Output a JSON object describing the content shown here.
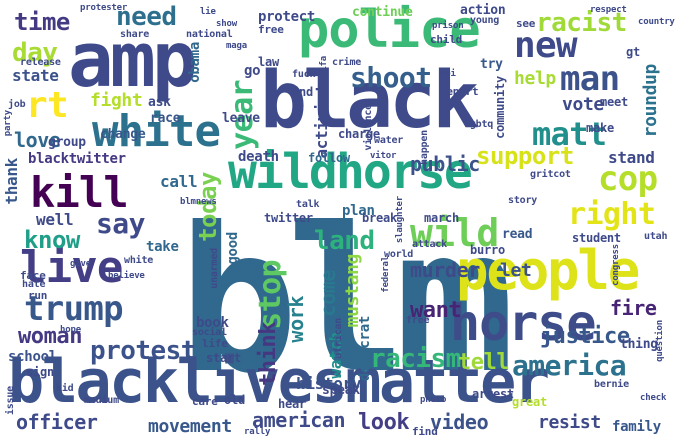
{
  "words": [
    {
      "id": "blm",
      "text": "blm",
      "color": "#31688e"
    },
    {
      "id": "blacklivesmatter",
      "text": "blacklivesmatter",
      "color": "#3b528b"
    },
    {
      "id": "black",
      "text": "black",
      "color": "#3e4a89"
    },
    {
      "id": "amp",
      "text": "amp",
      "color": "#3e4a89"
    },
    {
      "id": "police",
      "text": "police",
      "color": "#3aba76"
    },
    {
      "id": "wildhorse",
      "text": "wildhorse",
      "color": "#22a785"
    },
    {
      "id": "white",
      "text": "white",
      "color": "#2c728e"
    },
    {
      "id": "people",
      "text": "people",
      "color": "#dde318"
    },
    {
      "id": "horse",
      "text": "horse",
      "color": "#3e4c8a"
    },
    {
      "id": "live",
      "text": "live",
      "color": "#433e85"
    },
    {
      "id": "kill",
      "text": "kill",
      "color": "#440154"
    },
    {
      "id": "trump",
      "text": "trump",
      "color": "#38588c"
    },
    {
      "id": "new",
      "text": "new",
      "color": "#3e4a89"
    },
    {
      "id": "man",
      "text": "man",
      "color": "#3b528b"
    },
    {
      "id": "matt",
      "text": "matt",
      "color": "#21908d"
    },
    {
      "id": "wild",
      "text": "wild",
      "color": "#6ece58"
    },
    {
      "id": "land",
      "text": "land",
      "color": "#2db27d"
    },
    {
      "id": "cop",
      "text": "cop",
      "color": "#b5de2b"
    },
    {
      "id": "right",
      "text": "right",
      "color": "#e3e418"
    },
    {
      "id": "shoot",
      "text": "shoot",
      "color": "#355f8d"
    },
    {
      "id": "year",
      "text": "year",
      "color": "#3aba76"
    },
    {
      "id": "rt",
      "text": "rt",
      "color": "#fde725"
    },
    {
      "id": "say",
      "text": "say",
      "color": "#3e4a89"
    },
    {
      "id": "today",
      "text": "today",
      "color": "#7ad151"
    },
    {
      "id": "stop",
      "text": "stop",
      "color": "#5ec962"
    },
    {
      "id": "racism",
      "text": "racism",
      "color": "#35b779"
    },
    {
      "id": "woman",
      "text": "woman",
      "color": "#443983"
    },
    {
      "id": "racist",
      "text": "racist",
      "color": "#a0da39"
    },
    {
      "id": "time",
      "text": "time",
      "color": "#443a83"
    },
    {
      "id": "need",
      "text": "need",
      "color": "#2e6f8e"
    },
    {
      "id": "day",
      "text": "day",
      "color": "#a8db34"
    },
    {
      "id": "know",
      "text": "know",
      "color": "#1f9f88"
    },
    {
      "id": "support",
      "text": "support",
      "color": "#d8e219"
    },
    {
      "id": "protest",
      "text": "protest",
      "color": "#3b528b"
    },
    {
      "id": "america",
      "text": "america",
      "color": "#2c728e"
    },
    {
      "id": "justice",
      "text": "justice",
      "color": "#38588c"
    },
    {
      "id": "want",
      "text": "want",
      "color": "#482475"
    },
    {
      "id": "officer",
      "text": "officer",
      "color": "#3e4a89"
    },
    {
      "id": "movement",
      "text": "movement",
      "color": "#38588c"
    },
    {
      "id": "american",
      "text": "american",
      "color": "#3e4a89"
    },
    {
      "id": "look",
      "text": "look",
      "color": "#433e85"
    },
    {
      "id": "video",
      "text": "video",
      "color": "#3b528b"
    },
    {
      "id": "resist",
      "text": "resist",
      "color": "#3e4a89"
    },
    {
      "id": "family",
      "text": "family",
      "color": "#38588c"
    },
    {
      "id": "love",
      "text": "love",
      "color": "#31688e"
    },
    {
      "id": "public",
      "text": "public",
      "color": "#3b528b"
    },
    {
      "id": "think",
      "text": "think",
      "color": "#453781"
    },
    {
      "id": "come",
      "text": "come",
      "color": "#2a788e"
    },
    {
      "id": "mustang",
      "text": "mustang",
      "color": "#8fd744"
    },
    {
      "id": "work",
      "text": "work",
      "color": "#26828e"
    },
    {
      "id": "murder",
      "text": "murder",
      "color": "#3e4a89"
    },
    {
      "id": "let",
      "text": "let",
      "color": "#3b528b"
    },
    {
      "id": "fire",
      "text": "fire",
      "color": "#482475"
    },
    {
      "id": "history",
      "text": "history",
      "color": "#3b528b"
    },
    {
      "id": "tell",
      "text": "tell",
      "color": "#a0da39"
    },
    {
      "id": "vote",
      "text": "vote",
      "color": "#3e4a89"
    },
    {
      "id": "roundup",
      "text": "roundup",
      "color": "#2c728e"
    },
    {
      "id": "help",
      "text": "help",
      "color": "#a8db34"
    },
    {
      "id": "fight",
      "text": "fight",
      "color": "#b5de2b"
    },
    {
      "id": "state",
      "text": "state",
      "color": "#3b528b"
    },
    {
      "id": "well",
      "text": "well",
      "color": "#3e4a89"
    },
    {
      "id": "thank",
      "text": "thank",
      "color": "#38588c"
    },
    {
      "id": "stand",
      "text": "stand",
      "color": "#3e4a89"
    },
    {
      "id": "school",
      "text": "school",
      "color": "#3b528b"
    },
    {
      "id": "go",
      "text": "go",
      "color": "#3e4a89"
    },
    {
      "id": "obama",
      "text": "obama",
      "color": "#31688e"
    },
    {
      "id": "activist",
      "text": "activist",
      "color": "#3e4a89"
    },
    {
      "id": "plan",
      "text": "plan",
      "color": "#31688e"
    },
    {
      "id": "call",
      "text": "call",
      "color": "#31688e"
    },
    {
      "id": "death",
      "text": "death",
      "color": "#3e4a89"
    },
    {
      "id": "watch",
      "text": "watch",
      "color": "#21908d"
    },
    {
      "id": "democrat",
      "text": "democrat",
      "color": "#31688e"
    },
    {
      "id": "book",
      "text": "book",
      "color": "#3e4a89"
    },
    {
      "id": "good",
      "text": "good",
      "color": "#31688e"
    },
    {
      "id": "take",
      "text": "take",
      "color": "#31688e"
    },
    {
      "id": "blacktwitter",
      "text": "blacktwitter",
      "color": "#443983"
    },
    {
      "id": "change",
      "text": "change",
      "color": "#38588c"
    },
    {
      "id": "group",
      "text": "group",
      "color": "#3e4a89"
    },
    {
      "id": "protect",
      "text": "protect",
      "color": "#3e4a89"
    },
    {
      "id": "continue",
      "text": "continue",
      "color": "#6ece58"
    },
    {
      "id": "action",
      "text": "action",
      "color": "#3e4a89"
    },
    {
      "id": "race",
      "text": "race",
      "color": "#38588c"
    },
    {
      "id": "leave",
      "text": "leave",
      "color": "#3e4a89"
    },
    {
      "id": "ask",
      "text": "ask",
      "color": "#3e4a89"
    },
    {
      "id": "law",
      "text": "law",
      "color": "#3e4a89"
    },
    {
      "id": "end",
      "text": "end",
      "color": "#3e4a89"
    },
    {
      "id": "try",
      "text": "try",
      "color": "#38588c"
    },
    {
      "id": "follow",
      "text": "follow",
      "color": "#31688e"
    },
    {
      "id": "twitter",
      "text": "twitter",
      "color": "#3e4a89"
    },
    {
      "id": "break",
      "text": "break",
      "color": "#3e4a89"
    },
    {
      "id": "march",
      "text": "march",
      "color": "#3e4a89"
    },
    {
      "id": "student",
      "text": "student",
      "color": "#3e4a89"
    },
    {
      "id": "burro",
      "text": "burro",
      "color": "#3e4a89"
    },
    {
      "id": "read",
      "text": "read",
      "color": "#38588c"
    },
    {
      "id": "speak",
      "text": "speak",
      "color": "#3e4a89"
    },
    {
      "id": "hear",
      "text": "hear",
      "color": "#3e4a89"
    },
    {
      "id": "old",
      "text": "old",
      "color": "#3e4a89"
    },
    {
      "id": "care",
      "text": "care",
      "color": "#3e4a89"
    },
    {
      "id": "start",
      "text": "start",
      "color": "#3e4a89"
    },
    {
      "id": "sign",
      "text": "sign",
      "color": "#3e4a89"
    },
    {
      "id": "arrest",
      "text": "arrest",
      "color": "#3e4a89"
    },
    {
      "id": "thing",
      "text": "thing",
      "color": "#3e4a89"
    },
    {
      "id": "find",
      "text": "find",
      "color": "#3e4a89"
    },
    {
      "id": "great",
      "text": "great",
      "color": "#b5de2b"
    },
    {
      "id": "face",
      "text": "face",
      "color": "#3e4a89"
    },
    {
      "id": "run",
      "text": "run",
      "color": "#3e4a89"
    },
    {
      "id": "meet",
      "text": "meet",
      "color": "#3e4a89"
    },
    {
      "id": "make",
      "text": "make",
      "color": "#3e4a89"
    },
    {
      "id": "community",
      "text": "community",
      "color": "#3e4a89"
    },
    {
      "id": "charge",
      "text": "charge",
      "color": "#3e4a89"
    },
    {
      "id": "report",
      "text": "report",
      "color": "#3e4a89"
    },
    {
      "id": "see",
      "text": "see",
      "color": "#3e4a89"
    },
    {
      "id": "free",
      "text": "free",
      "color": "#3e4a89"
    },
    {
      "id": "child",
      "text": "child",
      "color": "#3e4a89"
    },
    {
      "id": "free2",
      "text": "free",
      "color": "#3e4a89"
    },
    {
      "id": "gt",
      "text": "gt",
      "color": "#3e4a89"
    },
    {
      "id": "young",
      "text": "young",
      "color": "#3e4a89"
    },
    {
      "id": "life",
      "text": "life",
      "color": "#3e4a89"
    },
    {
      "id": "social",
      "text": "social",
      "color": "#3e4a89"
    },
    {
      "id": "african",
      "text": "african",
      "color": "#3e4a89"
    },
    {
      "id": "unarmed",
      "text": "unarmed",
      "color": "#3e4a89"
    },
    {
      "id": "world",
      "text": "world",
      "color": "#3e4a89"
    },
    {
      "id": "attack",
      "text": "attack",
      "color": "#3e4a89"
    },
    {
      "id": "release",
      "text": "release",
      "color": "#3e4a89"
    },
    {
      "id": "share",
      "text": "share",
      "color": "#3e4a89"
    },
    {
      "id": "national",
      "text": "national",
      "color": "#3e4a89"
    },
    {
      "id": "crime",
      "text": "crime",
      "color": "#3e4a89"
    },
    {
      "id": "fuck",
      "text": "fuck",
      "color": "#3e4a89"
    },
    {
      "id": "talk",
      "text": "talk",
      "color": "#3e4a89"
    },
    {
      "id": "water",
      "text": "water",
      "color": "#3e4a89"
    },
    {
      "id": "job",
      "text": "job",
      "color": "#3e4a89"
    },
    {
      "id": "medium",
      "text": "medium",
      "color": "#3e4a89"
    },
    {
      "id": "protester",
      "text": "protester",
      "color": "#3e4a89"
    },
    {
      "id": "country",
      "text": "country",
      "color": "#3e4a89"
    },
    {
      "id": "party",
      "text": "party",
      "color": "#3e4a89"
    },
    {
      "id": "issue",
      "text": "issue",
      "color": "#3e4a89"
    },
    {
      "id": "kid",
      "text": "kid",
      "color": "#3e4a89"
    },
    {
      "id": "rally",
      "text": "rally",
      "color": "#3e4a89"
    },
    {
      "id": "hate",
      "text": "hate",
      "color": "#3e4a89"
    },
    {
      "id": "white2",
      "text": "white",
      "color": "#3e4a89"
    },
    {
      "id": "photo",
      "text": "photo",
      "color": "#3e4a89"
    },
    {
      "id": "bernie",
      "text": "bernie",
      "color": "#3e4a89"
    },
    {
      "id": "story",
      "text": "story",
      "color": "#3e4a89"
    },
    {
      "id": "utah",
      "text": "utah",
      "color": "#3e4a89"
    },
    {
      "id": "check",
      "text": "check",
      "color": "#3e4a89"
    },
    {
      "id": "federal",
      "text": "federal",
      "color": "#3e4a89"
    },
    {
      "id": "lgbtq",
      "text": "lgbtq",
      "color": "#3e4a89"
    },
    {
      "id": "gritcot",
      "text": "gritcot",
      "color": "#3e4a89"
    },
    {
      "id": "congress",
      "text": "congress",
      "color": "#3e4a89"
    },
    {
      "id": "believe",
      "text": "believe",
      "color": "#3e4a89"
    },
    {
      "id": "hope",
      "text": "hope",
      "color": "#3e4a89"
    },
    {
      "id": "question",
      "text": "question",
      "color": "#3e4a89"
    },
    {
      "id": "give",
      "text": "give",
      "color": "#3e4a89"
    },
    {
      "id": "happen",
      "text": "happen",
      "color": "#3e4a89"
    },
    {
      "id": "fbi",
      "text": "fbi",
      "color": "#3e4a89"
    },
    {
      "id": "maga",
      "text": "maga",
      "color": "#3e4a89"
    },
    {
      "id": "antifa",
      "text": "antifa",
      "color": "#3e4a89"
    },
    {
      "id": "vitor",
      "text": "vitor",
      "color": "#3e4a89"
    },
    {
      "id": "blmnews",
      "text": "blmnews",
      "color": "#3e4a89"
    },
    {
      "id": "slaughter",
      "text": "slaughter",
      "color": "#3e4a89"
    },
    {
      "id": "violence",
      "text": "violence",
      "color": "#3e4a89"
    },
    {
      "id": "lie",
      "text": "lie",
      "color": "#3e4a89"
    },
    {
      "id": "show",
      "text": "show",
      "color": "#3e4a89"
    },
    {
      "id": "prison",
      "text": "prison",
      "color": "#3e4a89"
    },
    {
      "id": "respect",
      "text": "respect",
      "color": "#3e4a89"
    }
  ]
}
